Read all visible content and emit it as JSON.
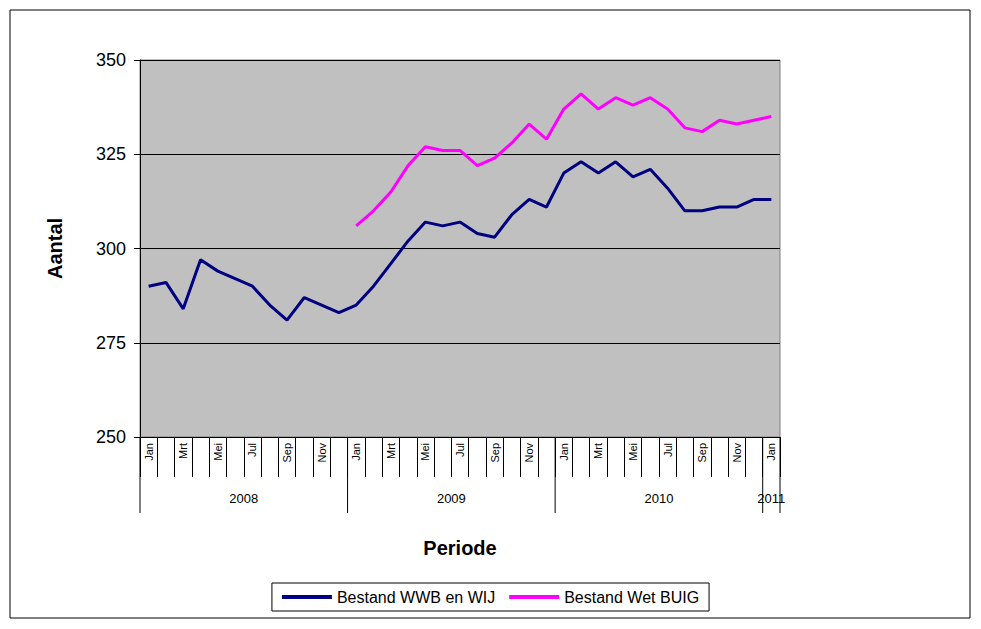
{
  "chart_data": {
    "type": "line",
    "x_label": "Periode",
    "y_label": "Aantal",
    "categories": [
      "Jan",
      null,
      "Mrt",
      null,
      "Mei",
      null,
      "Jul",
      null,
      "Sep",
      null,
      "Nov",
      null,
      "Jan",
      null,
      "Mrt",
      null,
      "Mei",
      null,
      "Jul",
      null,
      "Sep",
      null,
      "Nov",
      null,
      "Jan",
      null,
      "Mrt",
      null,
      "Mei",
      null,
      "Jul",
      null,
      "Sep",
      null,
      "Nov",
      null,
      "Jan"
    ],
    "years": [
      "2008",
      "2008",
      "2008",
      "2008",
      "2008",
      "2008",
      "2008",
      "2008",
      "2008",
      "2008",
      "2008",
      "2008",
      "2009",
      "2009",
      "2009",
      "2009",
      "2009",
      "2009",
      "2009",
      "2009",
      "2009",
      "2009",
      "2009",
      "2009",
      "2010",
      "2010",
      "2010",
      "2010",
      "2010",
      "2010",
      "2010",
      "2010",
      "2010",
      "2010",
      "2010",
      "2010",
      "2011"
    ],
    "series": [
      {
        "name": "Bestand WWB en WIJ",
        "color": "#000080",
        "values": [
          290,
          291,
          284,
          297,
          294,
          292,
          290,
          285,
          281,
          287,
          285,
          283,
          285,
          290,
          296,
          302,
          307,
          306,
          307,
          304,
          303,
          309,
          313,
          311,
          320,
          323,
          320,
          323,
          319,
          321,
          316,
          310,
          310,
          311,
          311,
          313,
          313
        ]
      },
      {
        "name": "Bestand Wet BUIG",
        "color": "#ff00ff",
        "values": [
          null,
          null,
          null,
          null,
          null,
          null,
          null,
          null,
          null,
          null,
          null,
          null,
          306,
          310,
          315,
          322,
          327,
          326,
          326,
          322,
          324,
          328,
          333,
          329,
          337,
          341,
          337,
          340,
          338,
          340,
          337,
          332,
          331,
          334,
          333,
          334,
          335
        ]
      }
    ],
    "ylim": [
      250,
      350
    ],
    "yticks": [
      250,
      275,
      300,
      325,
      350
    ],
    "grid": true,
    "legend": "bottom"
  }
}
